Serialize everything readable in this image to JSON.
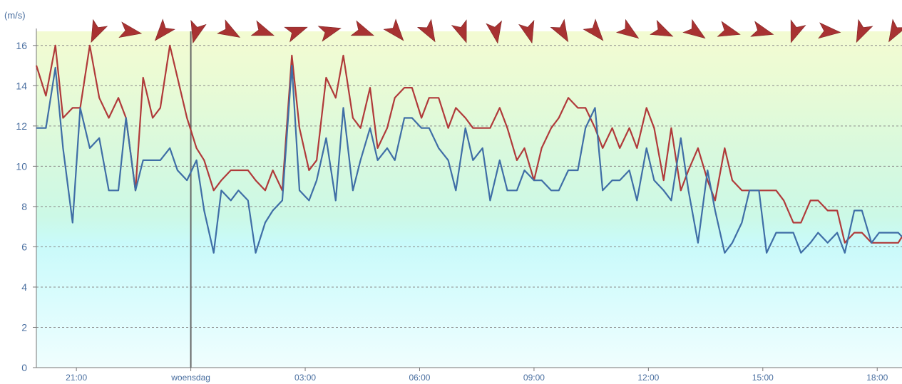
{
  "chart_data": {
    "type": "line",
    "y_unit": "(m/s)",
    "ylim": [
      0,
      16.7
    ],
    "y_ticks": [
      0,
      2,
      4,
      6,
      8,
      10,
      12,
      14,
      16
    ],
    "x_range_hours": [
      19.95,
      42.65
    ],
    "x_ticks": [
      {
        "h": 21,
        "label": "21:00"
      },
      {
        "h": 24,
        "label": "woensdag"
      },
      {
        "h": 27,
        "label": "03:00"
      },
      {
        "h": 30,
        "label": "06:00"
      },
      {
        "h": 33,
        "label": "09:00"
      },
      {
        "h": 36,
        "label": "12:00"
      },
      {
        "h": 39,
        "label": "15:00"
      },
      {
        "h": 42,
        "label": "18:00"
      }
    ],
    "day_divider_at_hour": 24,
    "grid": true,
    "colors": {
      "gust": "#b03a3a",
      "wind": "#3f6ea6",
      "arrow": "#a83232",
      "axis_text": "#4a6fa0"
    },
    "background_bands": [
      {
        "from": 0,
        "to": 6,
        "color": "#e0fbfc"
      },
      {
        "from": 6,
        "to": 12,
        "color": "#d4f8e8"
      },
      {
        "from": 12,
        "to": 16.7,
        "color": "#eafbd8"
      }
    ],
    "series": [
      {
        "key": "gust",
        "x": [
          19.95,
          20.2,
          20.45,
          20.65,
          20.9,
          21.1,
          21.35,
          21.6,
          21.85,
          22.1,
          22.3,
          22.55,
          22.75,
          23.0,
          23.2,
          23.45,
          23.65,
          23.9,
          24.15,
          24.35,
          24.6,
          24.8,
          25.05,
          25.25,
          25.5,
          25.7,
          25.95,
          26.15,
          26.4,
          26.65,
          26.85,
          27.1,
          27.3,
          27.55,
          27.8,
          28.0,
          28.25,
          28.45,
          28.7,
          28.9,
          29.15,
          29.35,
          29.6,
          29.8,
          30.05,
          30.25,
          30.5,
          30.75,
          30.95,
          31.2,
          31.4,
          31.65,
          31.85,
          32.1,
          32.3,
          32.55,
          32.75,
          33.0,
          33.2,
          33.45,
          33.65,
          33.9,
          34.15,
          34.35,
          34.6,
          34.8,
          35.05,
          35.25,
          35.5,
          35.7,
          35.95,
          36.15,
          36.4,
          36.6,
          36.85,
          37.05,
          37.3,
          37.55,
          37.75,
          38.0,
          38.2,
          38.45,
          38.65,
          38.9,
          39.1,
          39.35,
          39.55,
          39.8,
          40.0,
          40.25,
          40.45,
          40.7,
          40.95,
          41.15,
          41.4,
          41.6,
          41.85,
          42.05,
          42.3,
          42.55,
          42.65
        ],
        "values": [
          15.0,
          13.5,
          16.0,
          12.4,
          12.9,
          12.9,
          16.0,
          13.4,
          12.4,
          13.4,
          12.4,
          8.8,
          14.4,
          12.4,
          12.9,
          16.0,
          14.4,
          12.4,
          10.9,
          10.3,
          8.8,
          9.3,
          9.8,
          9.8,
          9.8,
          9.3,
          8.8,
          9.8,
          8.8,
          15.5,
          11.9,
          9.8,
          10.3,
          14.4,
          13.4,
          15.5,
          12.4,
          11.9,
          13.9,
          10.9,
          11.9,
          13.4,
          13.9,
          13.9,
          12.4,
          13.4,
          13.4,
          11.9,
          12.9,
          12.4,
          11.9,
          11.9,
          11.9,
          12.9,
          11.9,
          10.3,
          10.9,
          9.3,
          10.9,
          11.9,
          12.4,
          13.4,
          12.9,
          12.9,
          11.9,
          10.9,
          11.9,
          10.9,
          11.9,
          10.9,
          12.9,
          11.9,
          9.3,
          11.9,
          8.8,
          9.8,
          10.9,
          9.3,
          8.3,
          10.9,
          9.3,
          8.8,
          8.8,
          8.8,
          8.8,
          8.8,
          8.3,
          7.2,
          7.2,
          8.3,
          8.3,
          7.8,
          7.8,
          6.2,
          6.7,
          6.7,
          6.2,
          6.2,
          6.2,
          6.2,
          6.5
        ]
      },
      {
        "key": "wind",
        "x": [
          19.95,
          20.2,
          20.45,
          20.65,
          20.9,
          21.1,
          21.35,
          21.6,
          21.85,
          22.1,
          22.3,
          22.55,
          22.75,
          23.0,
          23.2,
          23.45,
          23.65,
          23.9,
          24.15,
          24.35,
          24.6,
          24.8,
          25.05,
          25.25,
          25.5,
          25.7,
          25.95,
          26.15,
          26.4,
          26.65,
          26.85,
          27.1,
          27.3,
          27.55,
          27.8,
          28.0,
          28.25,
          28.45,
          28.7,
          28.9,
          29.15,
          29.35,
          29.6,
          29.8,
          30.05,
          30.25,
          30.5,
          30.75,
          30.95,
          31.2,
          31.4,
          31.65,
          31.85,
          32.1,
          32.3,
          32.55,
          32.75,
          33.0,
          33.2,
          33.45,
          33.65,
          33.9,
          34.15,
          34.35,
          34.6,
          34.8,
          35.05,
          35.25,
          35.5,
          35.7,
          35.95,
          36.15,
          36.4,
          36.6,
          36.85,
          37.05,
          37.3,
          37.55,
          37.75,
          38.0,
          38.2,
          38.45,
          38.65,
          38.9,
          39.1,
          39.35,
          39.55,
          39.8,
          40.0,
          40.25,
          40.45,
          40.7,
          40.95,
          41.15,
          41.4,
          41.6,
          41.85,
          42.05,
          42.3,
          42.55,
          42.65
        ],
        "values": [
          11.9,
          11.9,
          14.9,
          10.9,
          7.2,
          12.9,
          10.9,
          11.4,
          8.8,
          8.8,
          12.4,
          8.8,
          10.3,
          10.3,
          10.3,
          10.9,
          9.8,
          9.3,
          10.3,
          7.8,
          5.7,
          8.8,
          8.3,
          8.8,
          8.3,
          5.7,
          7.2,
          7.8,
          8.3,
          15.0,
          8.8,
          8.3,
          9.3,
          11.4,
          8.3,
          12.9,
          8.8,
          10.3,
          11.9,
          10.3,
          10.9,
          10.3,
          12.4,
          12.4,
          11.9,
          11.9,
          10.9,
          10.3,
          8.8,
          11.9,
          10.3,
          10.9,
          8.3,
          10.3,
          8.8,
          8.8,
          9.8,
          9.3,
          9.3,
          8.8,
          8.8,
          9.8,
          9.8,
          11.9,
          12.9,
          8.8,
          9.3,
          9.3,
          9.8,
          8.3,
          10.9,
          9.3,
          8.8,
          8.3,
          11.4,
          8.8,
          6.2,
          9.8,
          7.8,
          5.7,
          6.2,
          7.2,
          8.8,
          8.8,
          5.7,
          6.7,
          6.7,
          6.7,
          5.7,
          6.2,
          6.7,
          6.2,
          6.7,
          5.7,
          7.8,
          7.8,
          6.2,
          6.7,
          6.7,
          6.7,
          6.5
        ]
      }
    ],
    "direction_arrows_deg": [
      205,
      100,
      220,
      195,
      120,
      110,
      70,
      75,
      110,
      140,
      150,
      160,
      170,
      165,
      150,
      140,
      125,
      115,
      125,
      105,
      105,
      200,
      95,
      205,
      210
    ]
  }
}
